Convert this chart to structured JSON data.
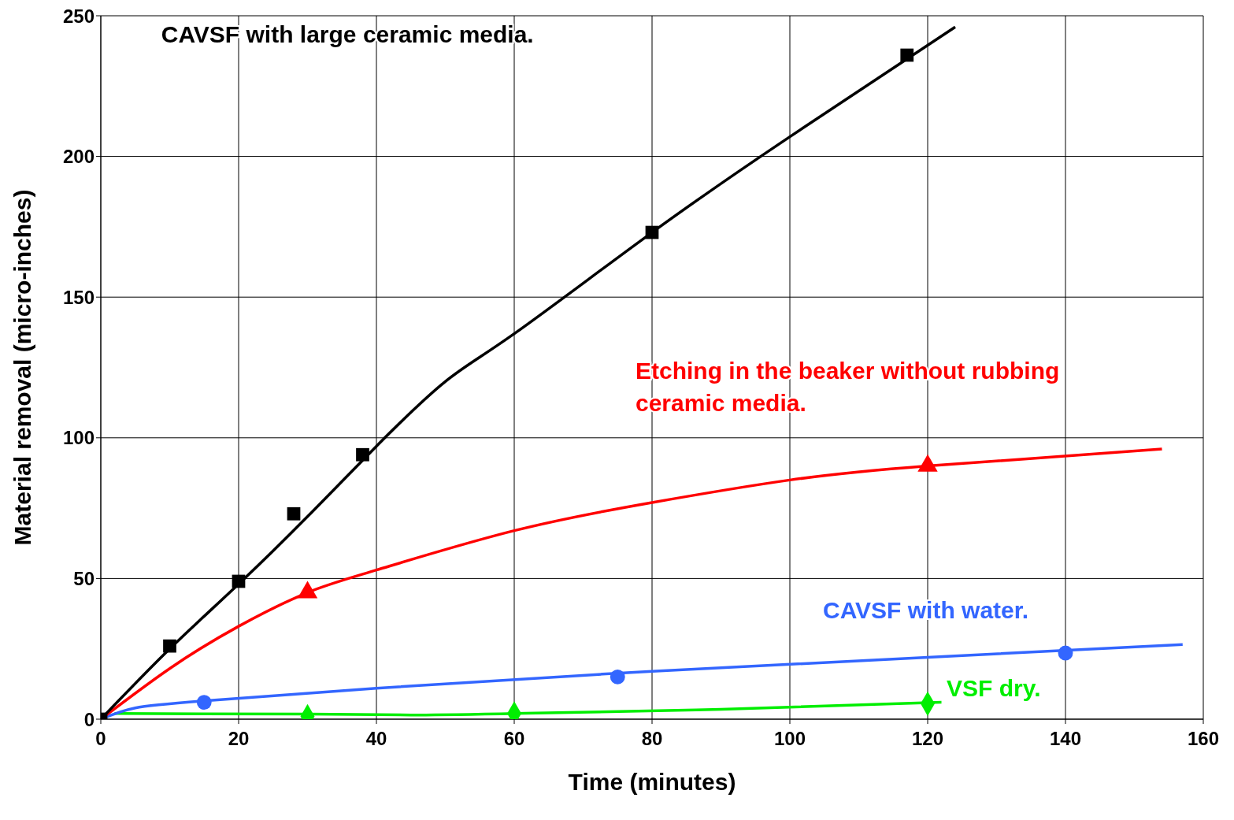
{
  "chart_data": {
    "type": "scatter",
    "xlabel": "Time     (minutes)",
    "ylabel": "Material removal     (micro-inches)",
    "xlim": [
      0,
      160
    ],
    "xticks": [
      0,
      20,
      40,
      60,
      80,
      100,
      120,
      140,
      160
    ],
    "ylim": [
      0,
      250
    ],
    "yticks": [
      0,
      50,
      100,
      150,
      200,
      250
    ],
    "grid": true,
    "legend": false,
    "series": [
      {
        "name": "CAVSF with large ceramic media.",
        "color": "#000000",
        "marker": "square",
        "x": [
          0,
          10,
          20,
          28,
          38,
          80,
          117
        ],
        "values": [
          0,
          26,
          49,
          73,
          94,
          173,
          236
        ]
      },
      {
        "name": "Etching in the beaker without rubbing ceramic media.",
        "color": "#ff0000",
        "marker": "triangle",
        "x": [
          30,
          120
        ],
        "values": [
          45,
          90
        ]
      },
      {
        "name": "CAVSF with water.",
        "color": "#3366ff",
        "marker": "circle",
        "x": [
          15,
          75,
          140
        ],
        "values": [
          6,
          15,
          23.5
        ]
      },
      {
        "name": "VSF dry.",
        "color": "#00ee00",
        "marker": "diamond",
        "x": [
          30,
          60,
          120
        ],
        "values": [
          1,
          2,
          5.5
        ]
      },
      {
        "type": "line",
        "color": "#000000",
        "marker": "none",
        "x": [
          0,
          10,
          20,
          30,
          40,
          50,
          60,
          80,
          100,
          124
        ],
        "values": [
          0,
          25,
          48,
          72,
          97,
          120,
          137,
          173,
          207,
          246
        ]
      },
      {
        "type": "line",
        "color": "#ff0000",
        "marker": "none",
        "x": [
          0,
          10,
          20,
          30,
          40,
          60,
          80,
          100,
          120,
          154
        ],
        "values": [
          0,
          18,
          33,
          45,
          53,
          67,
          77,
          85,
          90,
          96
        ]
      },
      {
        "type": "line",
        "color": "#3366ff",
        "marker": "none",
        "x": [
          0,
          5,
          15,
          40,
          80,
          120,
          157
        ],
        "values": [
          0,
          4,
          6.5,
          11,
          17,
          22,
          26.5
        ]
      },
      {
        "type": "line",
        "color": "#00ee00",
        "marker": "none",
        "x": [
          2,
          30,
          45,
          60,
          90,
          122
        ],
        "values": [
          2,
          1.8,
          1.5,
          2,
          3.5,
          6
        ]
      }
    ]
  }
}
